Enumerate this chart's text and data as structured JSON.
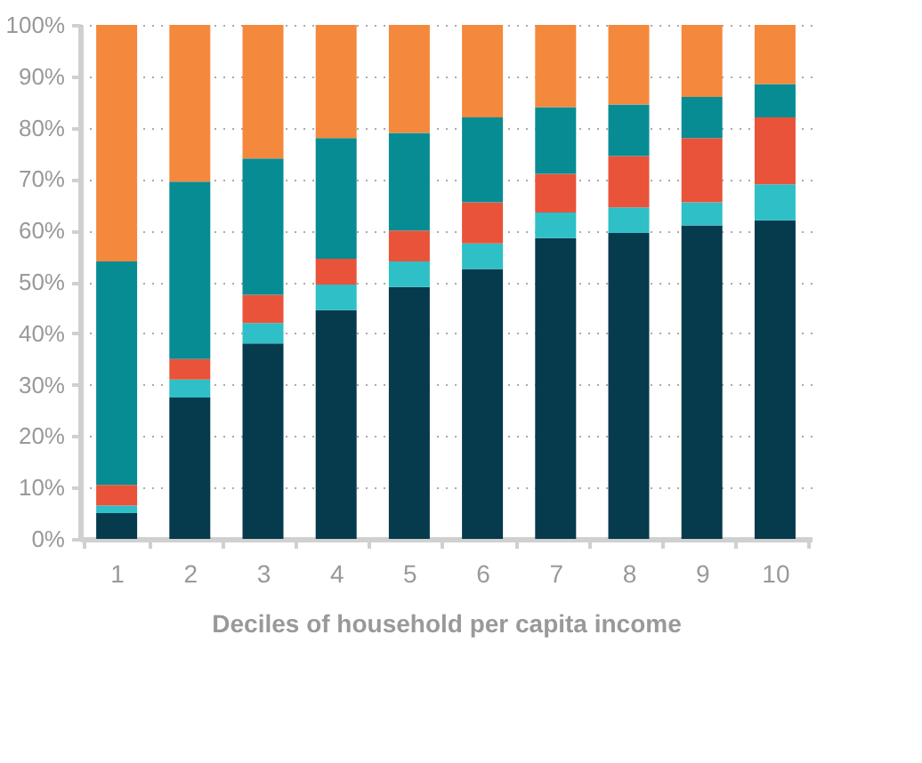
{
  "chart_data": {
    "type": "bar",
    "stacked": true,
    "xlabel": "Deciles of household per capita income",
    "categories": [
      "1",
      "2",
      "3",
      "4",
      "5",
      "6",
      "7",
      "8",
      "9",
      "10"
    ],
    "series": [
      {
        "color": "#063a4d",
        "values": [
          5,
          27.5,
          38,
          44.5,
          49,
          52.5,
          58.5,
          59.5,
          61,
          62
        ]
      },
      {
        "color": "#2ebfc7",
        "values": [
          1.5,
          3.5,
          4,
          5,
          5,
          5,
          5,
          5,
          4.5,
          7
        ]
      },
      {
        "color": "#e8533a",
        "values": [
          4,
          4,
          5.5,
          5,
          6,
          8,
          7.5,
          10,
          12.5,
          13
        ]
      },
      {
        "color": "#078c94",
        "values": [
          43.5,
          34.5,
          26.5,
          23.5,
          19,
          16.5,
          13,
          10,
          8,
          6.5
        ]
      },
      {
        "color": "#f4883d",
        "values": [
          46,
          30.5,
          26,
          22,
          21,
          18,
          16,
          15.5,
          14,
          11.5
        ]
      }
    ],
    "ylim": [
      0,
      100
    ],
    "yticks": [
      {
        "value": 0,
        "label": "0%"
      },
      {
        "value": 10,
        "label": "10%"
      },
      {
        "value": 20,
        "label": "20%"
      },
      {
        "value": 30,
        "label": "30%"
      },
      {
        "value": 40,
        "label": "40%"
      },
      {
        "value": 50,
        "label": "50%"
      },
      {
        "value": 60,
        "label": "60%"
      },
      {
        "value": 70,
        "label": "70%"
      },
      {
        "value": 80,
        "label": "80%"
      },
      {
        "value": 90,
        "label": "90%"
      },
      {
        "value": 100,
        "label": "100%"
      }
    ],
    "grid": "y",
    "legend": false
  }
}
